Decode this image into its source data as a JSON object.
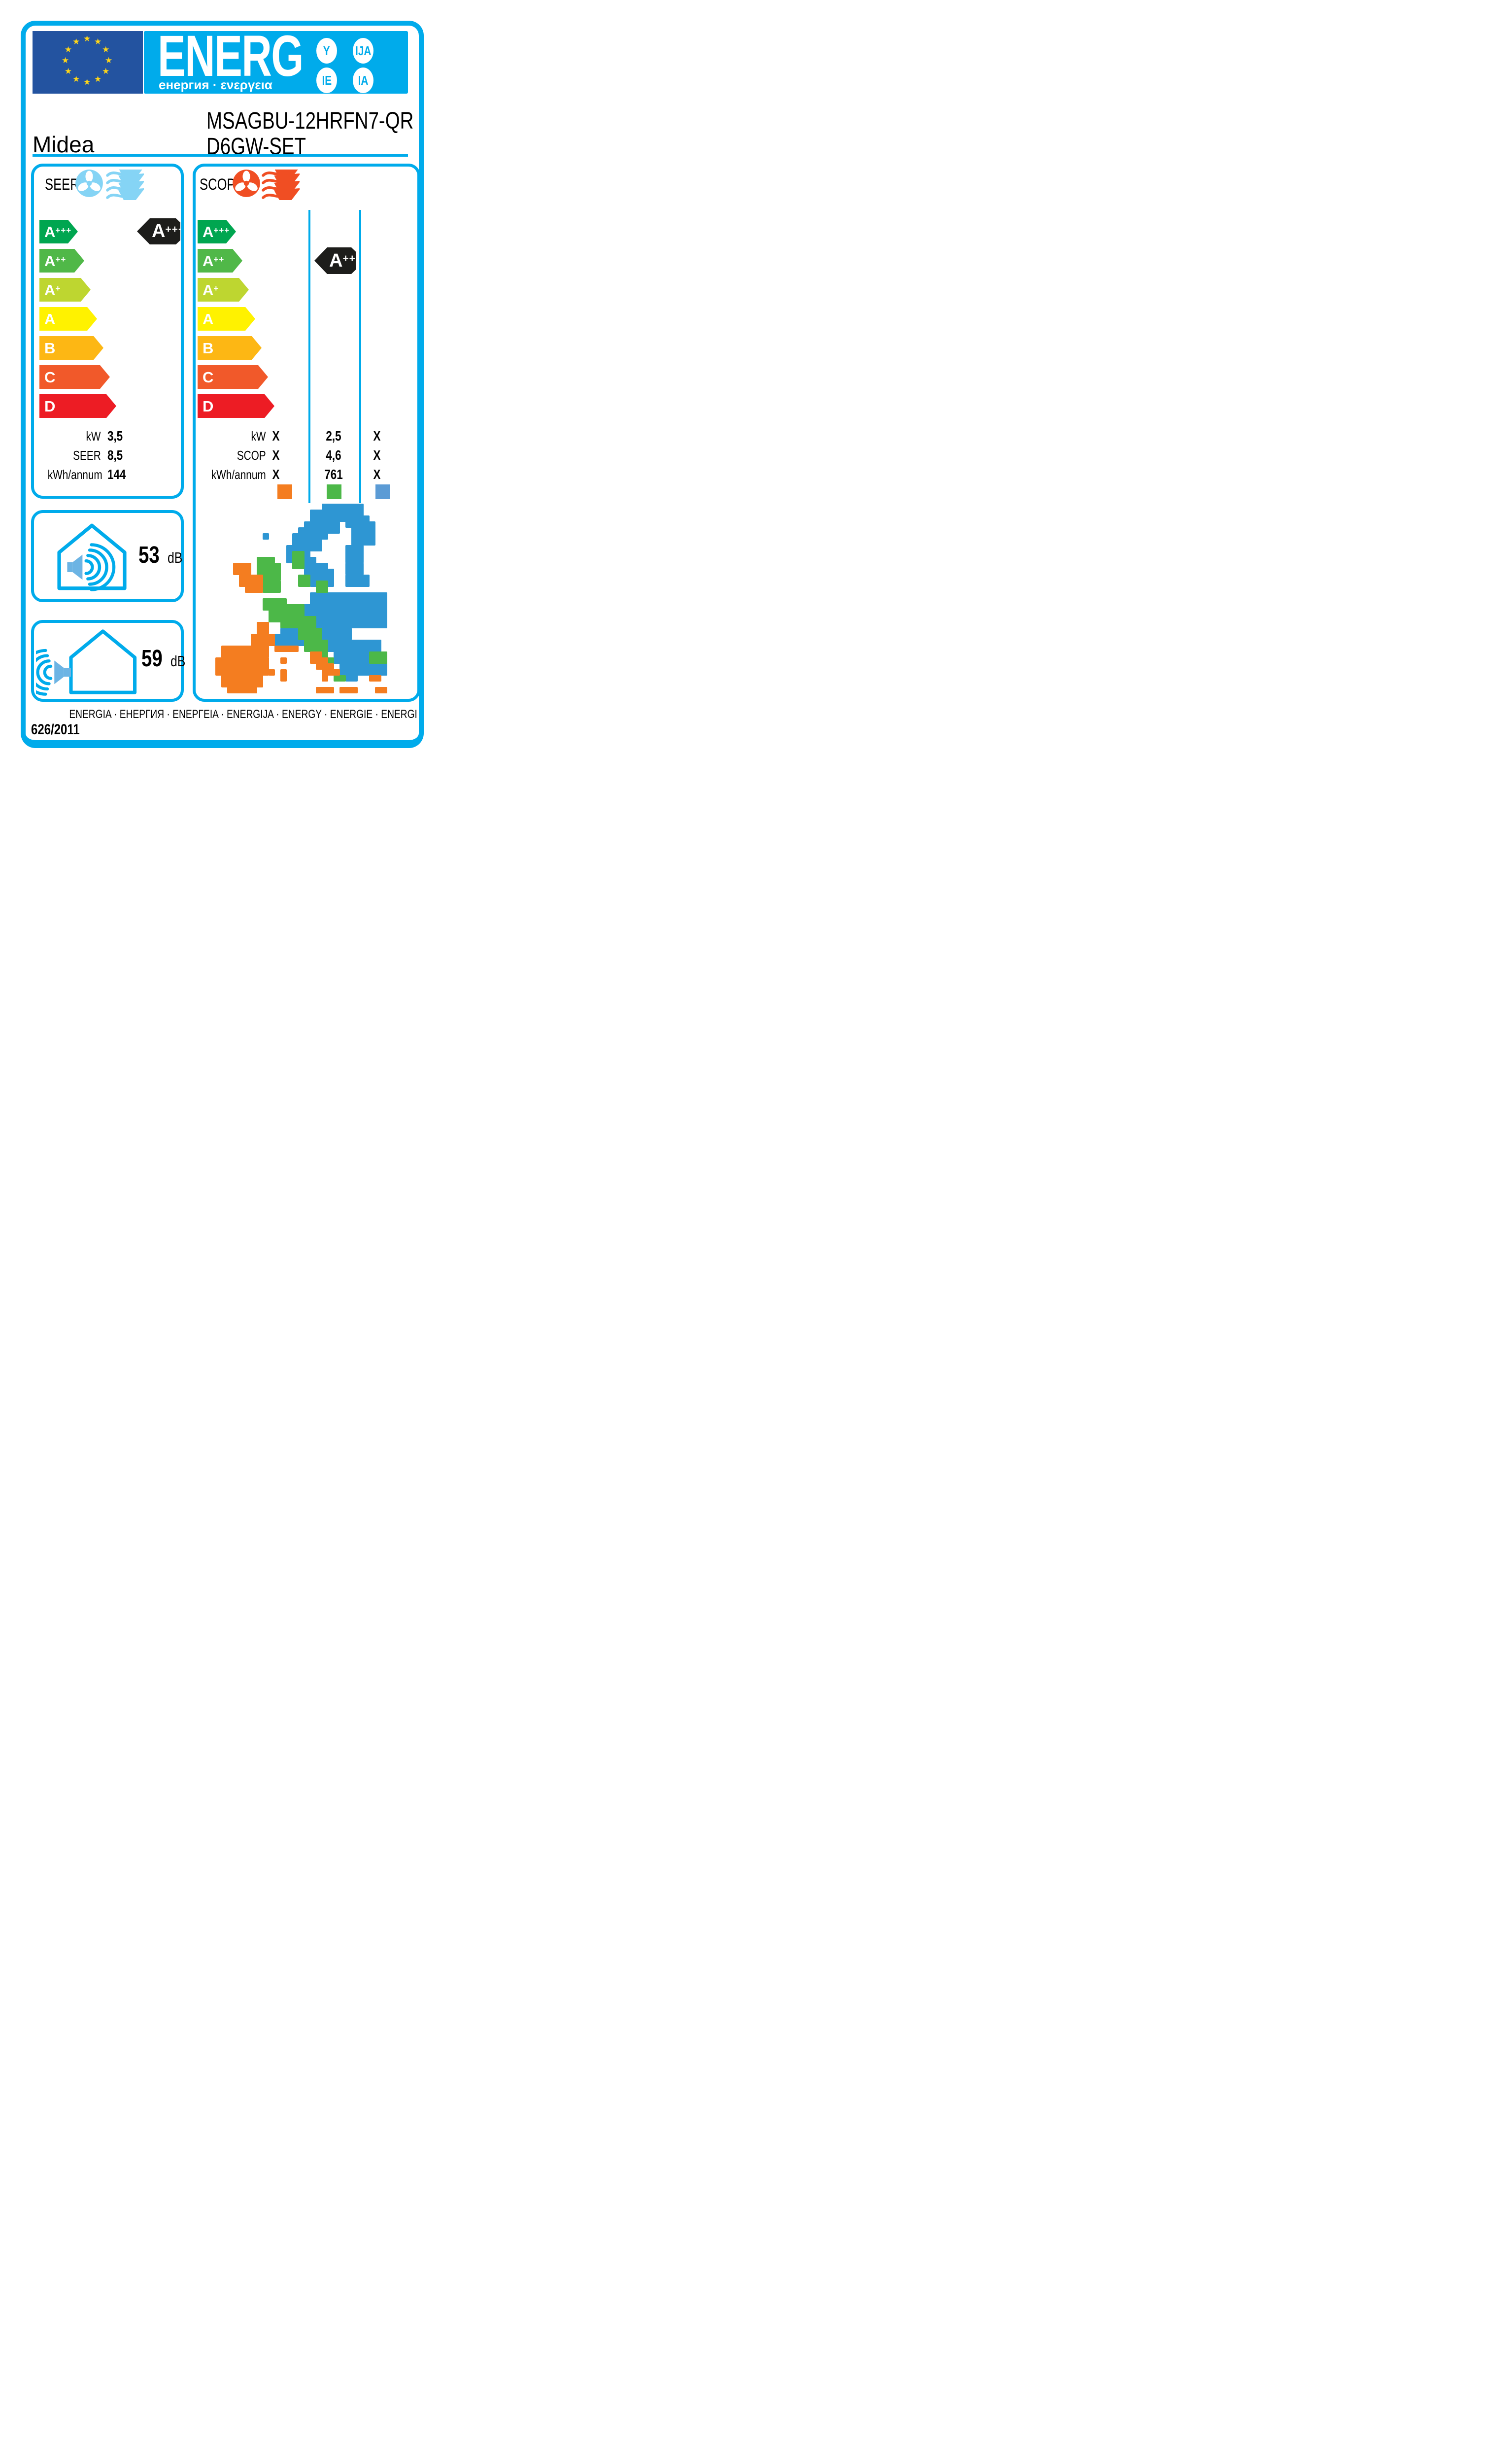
{
  "header": {
    "logo_main": "ENERG",
    "logo_sub": "енергия · ενεργεια",
    "badges": [
      "Y",
      "IJA",
      "IE",
      "IA"
    ]
  },
  "eu_flag": {
    "stars": 12
  },
  "brand": "Midea",
  "model_line1": "MSAGBU-12HRFN7-QR",
  "model_line2": "D6GW-SET",
  "scale": [
    {
      "letter": "A",
      "sup": "+++",
      "color": "#00a650"
    },
    {
      "letter": "A",
      "sup": "++",
      "color": "#50b848"
    },
    {
      "letter": "A",
      "sup": "+",
      "color": "#bed630"
    },
    {
      "letter": "A",
      "sup": "",
      "color": "#fff200"
    },
    {
      "letter": "B",
      "sup": "",
      "color": "#fdb714"
    },
    {
      "letter": "C",
      "sup": "",
      "color": "#f1592a"
    },
    {
      "letter": "D",
      "sup": "",
      "color": "#ed1c24"
    }
  ],
  "seer": {
    "title": "SEER",
    "rating": {
      "letter": "A",
      "sup": "+++"
    },
    "rows": [
      {
        "label": "kW",
        "value": "3,5"
      },
      {
        "label": "SEER",
        "value": "8,5"
      },
      {
        "label": "kWh/annum",
        "value": "144"
      }
    ]
  },
  "scop": {
    "title": "SCOP",
    "rating": {
      "letter": "A",
      "sup": "++"
    },
    "rows": [
      {
        "label": "kW",
        "values": [
          "X",
          "2,5",
          "X"
        ]
      },
      {
        "label": "SCOP",
        "values": [
          "X",
          "4,6",
          "X"
        ]
      },
      {
        "label": "kWh/annum",
        "values": [
          "X",
          "761",
          "X"
        ]
      }
    ],
    "legend_colors": [
      "#f47d20",
      "#4cb848",
      "#5b9bd5"
    ]
  },
  "noise": [
    {
      "value": "53",
      "unit": "dB",
      "type": "indoor"
    },
    {
      "value": "59",
      "unit": "dB",
      "type": "outdoor"
    }
  ],
  "footer": {
    "languages": "ENERGIA · ЕНЕРГИЯ · ENEPΓEIA · ENERGIJA · ENERGY · ENERGIE · ENERGI",
    "regulation": "626/2011"
  },
  "colors": {
    "cyan": "#00abeb",
    "fan_blue": "#85d4f5",
    "speaker_blue": "#6cb4e4",
    "fan_red": "#f04e23",
    "indicator_black": "#1d1d1b",
    "eu_blue": "#2353a0",
    "star_yellow": "#ffd617",
    "map_orange": "#f47d20",
    "map_green": "#4cb848",
    "map_blue": "#2e96d3"
  },
  "map": {
    "zones": {
      "o": "warmer",
      "g": "average",
      "b": "colder"
    },
    "blocks": [
      [
        "b",
        20,
        0,
        7,
        2
      ],
      [
        "b",
        18,
        1,
        9,
        2
      ],
      [
        "b",
        17,
        3,
        6,
        2
      ],
      [
        "b",
        24,
        2,
        4,
        2
      ],
      [
        "b",
        25,
        3,
        4,
        4
      ],
      [
        "b",
        16,
        4,
        5,
        2
      ],
      [
        "b",
        15,
        5,
        5,
        3
      ],
      [
        "b",
        14,
        7,
        4,
        3
      ],
      [
        "b",
        24,
        7,
        3,
        3
      ],
      [
        "b",
        15,
        9,
        4,
        2
      ],
      [
        "b",
        17,
        10,
        4,
        2
      ],
      [
        "b",
        18,
        11,
        4,
        3
      ],
      [
        "b",
        24,
        10,
        3,
        2
      ],
      [
        "b",
        24,
        12,
        4,
        2
      ],
      [
        "b",
        10,
        5,
        1,
        1
      ],
      [
        "b",
        18,
        15,
        13,
        3
      ],
      [
        "b",
        16,
        17,
        15,
        3
      ],
      [
        "b",
        15,
        19,
        16,
        2
      ],
      [
        "b",
        13,
        21,
        12,
        2
      ],
      [
        "b",
        11,
        22,
        6,
        2
      ],
      [
        "b",
        20,
        23,
        10,
        2
      ],
      [
        "b",
        22,
        24,
        8,
        3
      ],
      [
        "b",
        24,
        26,
        7,
        2
      ],
      [
        "b",
        26,
        27,
        5,
        2
      ],
      [
        "b",
        23,
        26,
        2,
        3
      ],
      [
        "b",
        24,
        28,
        2,
        2
      ],
      [
        "g",
        9,
        9,
        3,
        1
      ],
      [
        "g",
        9,
        10,
        4,
        3
      ],
      [
        "g",
        10,
        13,
        3,
        2
      ],
      [
        "g",
        15,
        8,
        2,
        3
      ],
      [
        "g",
        16,
        12,
        2,
        2
      ],
      [
        "g",
        19,
        13,
        2,
        2
      ],
      [
        "g",
        10,
        16,
        4,
        2
      ],
      [
        "g",
        11,
        17,
        6,
        3
      ],
      [
        "g",
        13,
        19,
        6,
        2
      ],
      [
        "g",
        16,
        21,
        4,
        2
      ],
      [
        "g",
        17,
        23,
        4,
        2
      ],
      [
        "g",
        19,
        25,
        2,
        2
      ],
      [
        "g",
        20,
        26,
        2,
        2
      ],
      [
        "g",
        28,
        25,
        3,
        2
      ],
      [
        "g",
        6,
        26,
        2,
        1
      ],
      [
        "g",
        10,
        26,
        1,
        1
      ],
      [
        "g",
        7,
        28,
        1,
        1
      ],
      [
        "g",
        22,
        29,
        2,
        1
      ],
      [
        "o",
        5,
        10,
        3,
        2
      ],
      [
        "o",
        6,
        12,
        4,
        2
      ],
      [
        "o",
        7,
        14,
        3,
        1
      ],
      [
        "o",
        9,
        20,
        2,
        2
      ],
      [
        "o",
        8,
        22,
        4,
        2
      ],
      [
        "o",
        3,
        24,
        8,
        2
      ],
      [
        "o",
        2,
        26,
        9,
        3
      ],
      [
        "o",
        3,
        29,
        7,
        2
      ],
      [
        "o",
        4,
        31,
        5,
        1
      ],
      [
        "o",
        12,
        24,
        4,
        1
      ],
      [
        "o",
        13,
        26,
        1,
        1
      ],
      [
        "o",
        13,
        28,
        1,
        2
      ],
      [
        "o",
        11,
        28,
        1,
        1
      ],
      [
        "o",
        18,
        25,
        2,
        2
      ],
      [
        "o",
        19,
        26,
        2,
        2
      ],
      [
        "o",
        20,
        27,
        2,
        2
      ],
      [
        "o",
        21,
        28,
        2,
        1
      ],
      [
        "o",
        20,
        29,
        1,
        1
      ],
      [
        "o",
        19,
        31,
        3,
        1
      ],
      [
        "o",
        23,
        31,
        3,
        1
      ],
      [
        "o",
        28,
        29,
        2,
        1
      ],
      [
        "o",
        29,
        31,
        2,
        1
      ]
    ]
  }
}
